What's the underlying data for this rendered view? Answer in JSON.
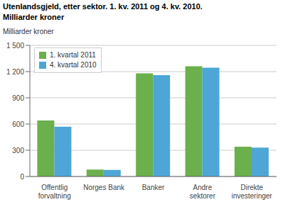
{
  "chart_data": {
    "type": "bar",
    "title": "Utenlandsgjeld, etter sektor. 1. kv. 2011 og 4. kv. 2010.",
    "subtitle": "Milliarder kroner",
    "ylabel": "Milliarder kroner",
    "categories": [
      "Offentlig\nforvaltning",
      "Norges Bank",
      "Banker",
      "Andre\nsektorer",
      "Direkte\ninvesteringer"
    ],
    "series": [
      {
        "name": "1. kvartal 2011",
        "color": "#6ab04c",
        "values": [
          640,
          80,
          1180,
          1260,
          340
        ]
      },
      {
        "name": "4. kvartal 2010",
        "color": "#4da6d6",
        "values": [
          570,
          75,
          1160,
          1245,
          330
        ]
      }
    ],
    "ylim": [
      0,
      1500
    ],
    "yticks": [
      0,
      300,
      600,
      900,
      {
        "value": 1200,
        "label": "1 200"
      },
      {
        "value": 1500,
        "label": "1 500"
      }
    ],
    "grid": true,
    "legend": "upper left"
  }
}
